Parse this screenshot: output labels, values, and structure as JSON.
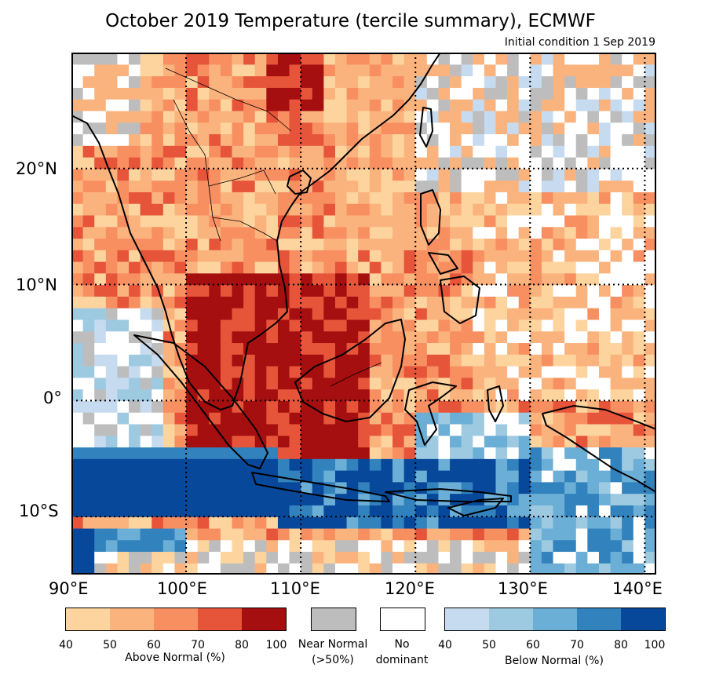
{
  "title": "October 2019 Temperature (tercile summary), ECMWF",
  "subtitle": "Initial condition 1 Sep 2019",
  "map": {
    "lat_labels": [
      "20°N",
      "10°N",
      "0°",
      "10°S"
    ],
    "lon_labels": [
      "90°E",
      "100°E",
      "110°E",
      "120°E",
      "130°E",
      "140°E"
    ],
    "lon_range": [
      90,
      141
    ],
    "lat_range": [
      -15,
      30
    ]
  },
  "legend": {
    "above": {
      "caption": "Above Normal (%)",
      "ticks": [
        "40",
        "50",
        "60",
        "70",
        "80",
        "100"
      ],
      "colors": [
        "#fdd49e",
        "#fbb37e",
        "#f88f61",
        "#e6553a",
        "#a50f0f"
      ]
    },
    "near": {
      "caption_line1": "Near Normal",
      "caption_line2": "(>50%)",
      "color": "#bdbdbd"
    },
    "none": {
      "caption_line1": "No",
      "caption_line2": "dominant",
      "color": "#ffffff"
    },
    "below": {
      "caption": "Below Normal (%)",
      "ticks": [
        "40",
        "50",
        "60",
        "70",
        "80",
        "100"
      ],
      "colors": [
        "#c6dbef",
        "#9ecae1",
        "#6baed6",
        "#3182bd",
        "#08489a"
      ]
    }
  }
}
